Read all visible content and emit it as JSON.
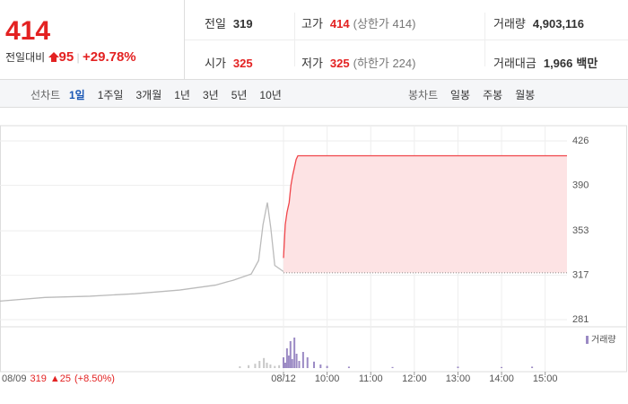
{
  "quote": {
    "price": "414",
    "change_label": "전일대비",
    "change": "95",
    "change_rate": "+29.78%",
    "stats": [
      {
        "label": "전일",
        "value": "319"
      },
      {
        "label": "고가",
        "value": "414",
        "note": "(상한가 414)"
      },
      {
        "label": "거래량",
        "value": "4,903,116"
      },
      {
        "label": "시가",
        "value": "325"
      },
      {
        "label": "저가",
        "value": "325",
        "note": "(하한가 224)"
      },
      {
        "label": "거래대금",
        "value": "1,966",
        "unit": "백만"
      }
    ]
  },
  "tabs": {
    "line_label": "선차트",
    "line_periods": [
      "1일",
      "1주일",
      "3개월",
      "1년",
      "3년",
      "5년",
      "10년"
    ],
    "active": 0,
    "candle_label": "봉차트",
    "candle_periods": [
      "일봉",
      "주봉",
      "월봉"
    ]
  },
  "prev_day": {
    "date": "08/09",
    "close": "319",
    "change": "▲25",
    "rate": "(+8.50%)"
  },
  "chart_data": {
    "type": "line",
    "series": [
      {
        "color": "#bbbbbb",
        "x": [
          0,
          1.03,
          2.06,
          3.09,
          4.12,
          4.94,
          5.35,
          5.76,
          5.93,
          6.03,
          6.13,
          6.21,
          6.3,
          6.42,
          6.5
        ],
        "values": [
          296,
          299,
          300,
          302,
          305,
          309,
          313,
          318,
          329,
          358,
          376,
          355,
          325,
          322,
          320
        ]
      },
      {
        "color": "#f0464b",
        "fill": "#fde3e4",
        "x": [
          6.5,
          6.54,
          6.58,
          6.63,
          6.67,
          6.71,
          6.79,
          6.83,
          13
        ],
        "values": [
          331,
          358,
          368,
          376,
          390,
          398,
          411,
          414,
          414
        ]
      }
    ],
    "baseline": 319,
    "xlim": [
      0,
      13
    ],
    "xticks": [
      {
        "value": 6.5,
        "label": "08/12"
      },
      {
        "value": 7.5,
        "label": "10:00"
      },
      {
        "value": 8.5,
        "label": "11:00"
      },
      {
        "value": 9.5,
        "label": "12:00"
      },
      {
        "value": 10.5,
        "label": "13:00"
      },
      {
        "value": 11.5,
        "label": "14:00"
      },
      {
        "value": 12.5,
        "label": "15:00"
      }
    ],
    "ylim": [
      281,
      426
    ],
    "yticks": [
      281,
      317,
      353,
      390,
      426
    ],
    "grid": true,
    "volume": {
      "label": "거래량",
      "ylim": [
        0,
        100
      ],
      "series": [
        {
          "color": "#c8c8c8",
          "x": [
            5.5,
            5.7,
            5.85,
            5.95,
            6.05,
            6.12,
            6.2,
            6.3,
            6.4
          ],
          "values": [
            5,
            8,
            12,
            20,
            28,
            15,
            10,
            6,
            8
          ]
        },
        {
          "color": "#9b8ac4",
          "x": [
            6.5,
            6.54,
            6.58,
            6.62,
            6.66,
            6.7,
            6.75,
            6.8,
            6.86,
            6.95,
            7.05,
            7.2,
            7.35,
            7.5,
            8,
            9,
            10.5,
            11.5,
            12.2
          ],
          "values": [
            30,
            15,
            55,
            35,
            75,
            25,
            85,
            40,
            20,
            45,
            30,
            18,
            10,
            6,
            4,
            3,
            4,
            3,
            4
          ]
        }
      ]
    }
  }
}
